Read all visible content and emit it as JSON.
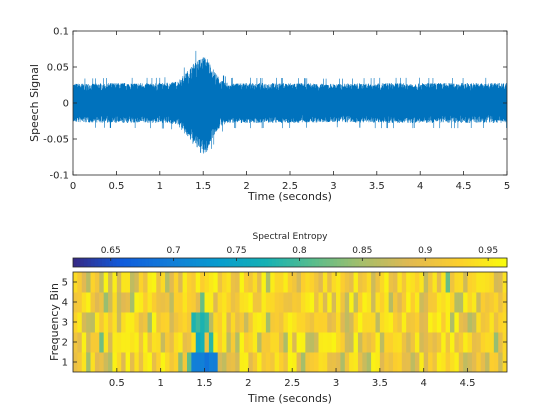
{
  "chart_data": [
    {
      "type": "line",
      "xlabel": "Time (seconds)",
      "ylabel": "Speech Signal",
      "xlim": [
        0,
        5
      ],
      "ylim": [
        -0.1,
        0.1
      ],
      "xticks": [
        0,
        0.5,
        1,
        1.5,
        2,
        2.5,
        3,
        3.5,
        4,
        4.5,
        5
      ],
      "xtick_labels": [
        "0",
        "0.5",
        "1",
        "1.5",
        "2",
        "2.5",
        "3",
        "3.5",
        "4",
        "4.5",
        "5"
      ],
      "yticks": [
        0.1,
        0.05,
        0,
        -0.05,
        -0.1
      ],
      "ytick_labels": [
        "0.1",
        "0.05",
        "0",
        "-0.05",
        "-0.1"
      ],
      "series": [
        {
          "color": "#0072bd",
          "envelope": {
            "x": [
              0,
              0.5,
              1.0,
              1.2,
              1.3,
              1.4,
              1.5,
              1.55,
              1.6,
              1.7,
              1.8,
              2.0,
              2.5,
              3.0,
              3.5,
              4.0,
              4.5,
              5.0
            ],
            "upper": [
              0.027,
              0.028,
              0.028,
              0.03,
              0.042,
              0.057,
              0.065,
              0.062,
              0.05,
              0.032,
              0.028,
              0.028,
              0.028,
              0.027,
              0.028,
              0.028,
              0.028,
              0.028
            ],
            "lower": [
              -0.027,
              -0.028,
              -0.028,
              -0.03,
              -0.045,
              -0.06,
              -0.074,
              -0.068,
              -0.05,
              -0.033,
              -0.028,
              -0.028,
              -0.028,
              -0.027,
              -0.028,
              -0.028,
              -0.028,
              -0.028
            ]
          }
        }
      ]
    },
    {
      "type": "heatmap",
      "xlabel": "Time (seconds)",
      "ylabel": "Frequency Bin",
      "colorbar_label": "Spectral Entropy",
      "colorbar_location": "top",
      "colorbar_range": [
        0.62,
        0.965
      ],
      "colorbar_ticks": [
        0.65,
        0.7,
        0.75,
        0.8,
        0.85,
        0.9,
        0.95
      ],
      "colorbar_tick_labels": [
        "0.65",
        "0.7",
        "0.75",
        "0.8",
        "0.85",
        "0.9",
        "0.95"
      ],
      "xlim": [
        0,
        4.95
      ],
      "ylim": [
        0.5,
        5.5
      ],
      "xticks": [
        0.5,
        1,
        1.5,
        2,
        2.5,
        3,
        3.5,
        4,
        4.5
      ],
      "xtick_labels": [
        "0.5",
        "1",
        "1.5",
        "2",
        "2.5",
        "3",
        "3.5",
        "4",
        "4.5"
      ],
      "yticks": [
        1,
        2,
        3,
        4,
        5
      ],
      "ytick_labels": [
        "1",
        "2",
        "3",
        "4",
        "5"
      ],
      "rows": [
        1,
        2,
        3,
        4,
        5
      ],
      "time_start": 0,
      "time_step": 0.05,
      "columns": 99,
      "typical_range": [
        0.84,
        0.96
      ],
      "low_regions": [
        {
          "row": 1,
          "t0": 1.35,
          "t1": 1.65,
          "value": 0.7
        },
        {
          "row": 2,
          "t0": 1.4,
          "t1": 1.5,
          "value": 0.76
        },
        {
          "row": 3,
          "t0": 1.35,
          "t1": 1.55,
          "value": 0.79
        },
        {
          "row": 1,
          "t0": 1.3,
          "t1": 1.35,
          "value": 0.8
        },
        {
          "row": 2,
          "t0": 1.55,
          "t1": 1.6,
          "value": 0.78
        },
        {
          "row": 4,
          "t0": 1.45,
          "t1": 1.5,
          "value": 0.82
        },
        {
          "row": 2,
          "t0": 0.3,
          "t1": 0.35,
          "value": 0.83
        },
        {
          "row": 5,
          "t0": 4.25,
          "t1": 4.3,
          "value": 0.83
        }
      ]
    }
  ]
}
